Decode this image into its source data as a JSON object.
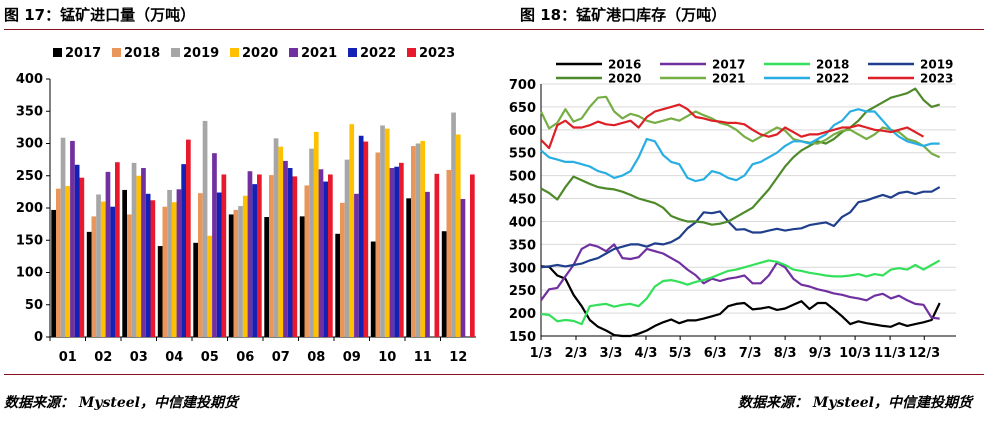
{
  "header": {
    "left_title": "图 17：锰矿进口量（万吨）",
    "right_title": "图 18：锰矿港口库存（万吨）"
  },
  "footer": {
    "left_source": "数据来源： Mysteel，中信建投期货",
    "right_source": "数据来源： Mysteel，中信建投期货"
  },
  "colors": {
    "2016": "#000000",
    "2017": "#7030a0",
    "2018": "#33e05a",
    "2019": "#1f3e8c",
    "2020": "#4e8a2a",
    "2021": "#76ad45",
    "2022": "#29aee3",
    "2023": "#dd1f26",
    "bar_2017": "#000000",
    "bar_2018": "#e8965a",
    "bar_2019": "#a6a6a6",
    "bar_2020": "#ffc000",
    "bar_2021": "#7030a0",
    "bar_2022": "#1520b5",
    "bar_2023": "#e8192c",
    "rule": "#8a0f1e"
  },
  "chart_data": [
    {
      "type": "bar",
      "title": "图 17：锰矿进口量（万吨）",
      "ylim": [
        0,
        400
      ],
      "yticks": [
        0,
        50,
        100,
        150,
        200,
        250,
        300,
        350,
        400
      ],
      "grid": false,
      "legend": "top",
      "categories": [
        "01",
        "02",
        "03",
        "04",
        "05",
        "06",
        "07",
        "08",
        "09",
        "10",
        "11",
        "12"
      ],
      "series": [
        {
          "name": "2017",
          "values": [
            197,
            163,
            228,
            141,
            146,
            190,
            186,
            187,
            160,
            148,
            215,
            164
          ]
        },
        {
          "name": "2018",
          "values": [
            230,
            187,
            190,
            202,
            223,
            197,
            251,
            235,
            208,
            286,
            296,
            259
          ]
        },
        {
          "name": "2019",
          "values": [
            309,
            221,
            270,
            228,
            335,
            203,
            308,
            292,
            275,
            328,
            300,
            348
          ]
        },
        {
          "name": "2020",
          "values": [
            234,
            210,
            250,
            209,
            157,
            219,
            295,
            318,
            330,
            323,
            304,
            314
          ]
        },
        {
          "name": "2021",
          "values": [
            304,
            256,
            262,
            229,
            285,
            257,
            273,
            260,
            222,
            262,
            225,
            214
          ]
        },
        {
          "name": "2022",
          "values": [
            267,
            202,
            222,
            268,
            224,
            237,
            262,
            241,
            312,
            264,
            null,
            null
          ]
        },
        {
          "name": "2023",
          "values": [
            247,
            271,
            212,
            306,
            252,
            252,
            249,
            252,
            303,
            270,
            253,
            252
          ]
        }
      ]
    },
    {
      "type": "line",
      "title": "图 18：锰矿港口库存（万吨）",
      "ylim": [
        150,
        700
      ],
      "yticks": [
        150,
        200,
        250,
        300,
        350,
        400,
        450,
        500,
        550,
        600,
        650,
        700
      ],
      "xlim": [
        0,
        51
      ],
      "xtick_labels": [
        "1/3",
        "2/3",
        "3/3",
        "4/3",
        "5/3",
        "6/3",
        "7/3",
        "8/3",
        "9/3",
        "10/3",
        "11/3",
        "12/3"
      ],
      "xtick_positions": [
        0,
        4.3,
        8.6,
        12.9,
        17.1,
        21.4,
        25.7,
        30,
        34.3,
        38.6,
        42.9,
        47.1
      ],
      "grid": true,
      "legend": "top",
      "series": [
        {
          "name": "2016",
          "values": [
            302,
            301,
            282,
            275,
            240,
            215,
            185,
            170,
            162,
            152,
            150,
            150,
            155,
            162,
            172,
            180,
            186,
            178,
            184,
            184,
            188,
            193,
            198,
            215,
            220,
            222,
            208,
            210,
            213,
            207,
            210,
            218,
            226,
            209,
            222,
            222,
            208,
            193,
            176,
            182,
            178,
            175,
            172,
            170,
            178,
            172,
            176,
            180,
            185,
            222
          ]
        },
        {
          "name": "2017",
          "values": [
            228,
            252,
            255,
            280,
            305,
            340,
            350,
            345,
            335,
            350,
            320,
            318,
            322,
            340,
            335,
            330,
            320,
            310,
            295,
            283,
            265,
            275,
            270,
            275,
            278,
            282,
            265,
            265,
            282,
            310,
            300,
            275,
            262,
            258,
            252,
            248,
            243,
            240,
            235,
            232,
            228,
            238,
            242,
            232,
            238,
            228,
            220,
            218,
            190,
            188
          ]
        },
        {
          "name": "2018",
          "values": [
            198,
            196,
            182,
            185,
            183,
            176,
            215,
            218,
            220,
            214,
            218,
            220,
            215,
            232,
            258,
            270,
            272,
            268,
            262,
            268,
            272,
            278,
            285,
            292,
            295,
            300,
            305,
            310,
            315,
            312,
            305,
            295,
            292,
            288,
            285,
            282,
            280,
            280,
            282,
            285,
            280,
            285,
            282,
            295,
            298,
            295,
            305,
            295,
            305,
            315
          ]
        },
        {
          "name": "2019",
          "values": [
            300,
            302,
            305,
            302,
            305,
            308,
            315,
            320,
            330,
            340,
            345,
            350,
            350,
            345,
            352,
            350,
            355,
            365,
            385,
            398,
            420,
            418,
            422,
            400,
            382,
            383,
            376,
            376,
            380,
            384,
            380,
            383,
            385,
            392,
            395,
            398,
            390,
            410,
            420,
            442,
            446,
            452,
            458,
            452,
            462,
            465,
            460,
            465,
            465,
            475
          ]
        },
        {
          "name": "2020",
          "values": [
            472,
            462,
            448,
            475,
            498,
            490,
            482,
            475,
            472,
            470,
            465,
            458,
            450,
            445,
            440,
            430,
            412,
            405,
            400,
            400,
            398,
            393,
            395,
            400,
            410,
            420,
            430,
            450,
            470,
            495,
            520,
            540,
            555,
            565,
            575,
            570,
            580,
            595,
            605,
            620,
            640,
            650,
            660,
            670,
            675,
            680,
            690,
            665,
            650,
            655
          ]
        },
        {
          "name": "2021",
          "values": [
            640,
            603,
            615,
            645,
            618,
            625,
            650,
            670,
            672,
            640,
            625,
            635,
            630,
            620,
            615,
            620,
            625,
            620,
            630,
            640,
            632,
            625,
            615,
            610,
            600,
            585,
            575,
            585,
            595,
            605,
            598,
            580,
            575,
            572,
            570,
            578,
            590,
            598,
            600,
            590,
            580,
            590,
            605,
            600,
            595,
            580,
            575,
            565,
            548,
            540
          ]
        },
        {
          "name": "2022",
          "values": [
            555,
            540,
            535,
            530,
            530,
            525,
            520,
            510,
            505,
            495,
            500,
            510,
            540,
            580,
            575,
            545,
            530,
            525,
            495,
            488,
            492,
            510,
            505,
            495,
            490,
            500,
            525,
            530,
            540,
            550,
            565,
            575,
            575,
            570,
            580,
            590,
            610,
            620,
            640,
            645,
            640,
            640,
            620,
            600,
            585,
            575,
            570,
            565,
            570,
            570
          ]
        },
        {
          "name": "2023",
          "values": [
            578,
            560,
            610,
            620,
            605,
            605,
            610,
            618,
            612,
            610,
            615,
            620,
            605,
            628,
            640,
            645,
            650,
            655,
            645,
            628,
            625,
            620,
            618,
            615,
            615,
            612,
            600,
            590,
            585,
            590,
            605,
            595,
            585,
            590,
            590,
            595,
            600,
            605,
            605,
            610,
            605,
            600,
            598,
            595,
            600,
            605,
            595,
            585,
            null,
            null
          ]
        }
      ]
    }
  ]
}
